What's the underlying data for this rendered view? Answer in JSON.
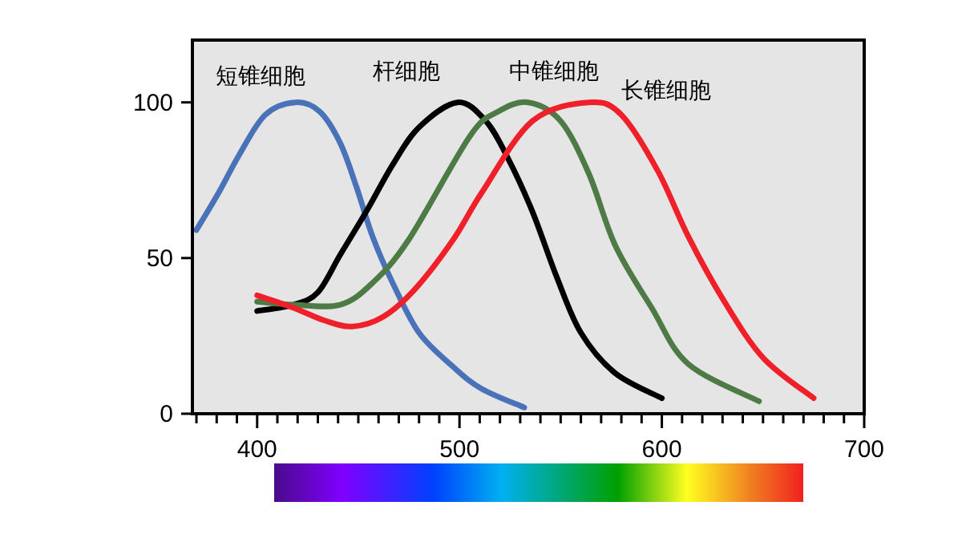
{
  "chart_data": {
    "type": "line",
    "xlim": [
      368,
      700
    ],
    "ylim": [
      0,
      120
    ],
    "xticks": [
      {
        "value": 370,
        "label": null
      },
      {
        "value": 380,
        "label": null
      },
      {
        "value": 390,
        "label": null
      },
      400,
      {
        "value": 410,
        "label": null
      },
      {
        "value": 420,
        "label": null
      },
      {
        "value": 430,
        "label": null
      },
      {
        "value": 440,
        "label": null
      },
      {
        "value": 450,
        "label": null
      },
      {
        "value": 460,
        "label": null
      },
      {
        "value": 470,
        "label": null
      },
      {
        "value": 480,
        "label": null
      },
      {
        "value": 490,
        "label": null
      },
      500,
      {
        "value": 510,
        "label": null
      },
      {
        "value": 520,
        "label": null
      },
      {
        "value": 530,
        "label": null
      },
      {
        "value": 540,
        "label": null
      },
      {
        "value": 550,
        "label": null
      },
      {
        "value": 560,
        "label": null
      },
      {
        "value": 570,
        "label": null
      },
      {
        "value": 580,
        "label": null
      },
      {
        "value": 590,
        "label": null
      },
      600,
      {
        "value": 610,
        "label": null
      },
      {
        "value": 620,
        "label": null
      },
      {
        "value": 630,
        "label": null
      },
      {
        "value": 640,
        "label": null
      },
      {
        "value": 650,
        "label": null
      },
      {
        "value": 660,
        "label": null
      },
      {
        "value": 670,
        "label": null
      },
      {
        "value": 680,
        "label": null
      },
      {
        "value": 690,
        "label": null
      },
      700
    ],
    "yticks": [
      0,
      50,
      100
    ],
    "grid": false,
    "marker": "none",
    "line_style": "solid",
    "series": [
      {
        "name": "短锥细胞",
        "color": "#4a72b8",
        "x": [
          370,
          381,
          391,
          404,
          419,
          431,
          441,
          449,
          457,
          467,
          480,
          497,
          511,
          532
        ],
        "values": [
          59,
          71,
          83,
          96,
          100,
          97,
          87,
          73,
          57,
          42,
          26,
          15,
          8,
          2
        ]
      },
      {
        "name": "杆细胞",
        "color": "#000000",
        "x": [
          400,
          418,
          430,
          441,
          454,
          467,
          480,
          499,
          513,
          524,
          536,
          548,
          560,
          577,
          600
        ],
        "values": [
          33,
          35,
          39,
          51,
          65,
          80,
          92,
          100,
          94,
          82,
          65,
          44,
          26,
          13,
          5
        ]
      },
      {
        "name": "中锥细胞",
        "color": "#4d7a45",
        "x": [
          400,
          418,
          441,
          457,
          475,
          505,
          519,
          534,
          550,
          564,
          577,
          595,
          613,
          648
        ],
        "values": [
          36,
          35,
          35,
          42,
          56,
          89,
          97,
          100,
          94,
          77,
          54,
          34,
          16,
          4
        ]
      },
      {
        "name": "长锥细胞",
        "color": "#f0202a",
        "x": [
          400,
          418,
          433,
          447,
          462,
          478,
          497,
          511,
          536,
          564,
          580,
          598,
          613,
          630,
          650,
          675
        ],
        "values": [
          38,
          34,
          30,
          28,
          31,
          40,
          56,
          71,
          94,
          100,
          96,
          78,
          57,
          37,
          18,
          5
        ]
      }
    ]
  }
}
